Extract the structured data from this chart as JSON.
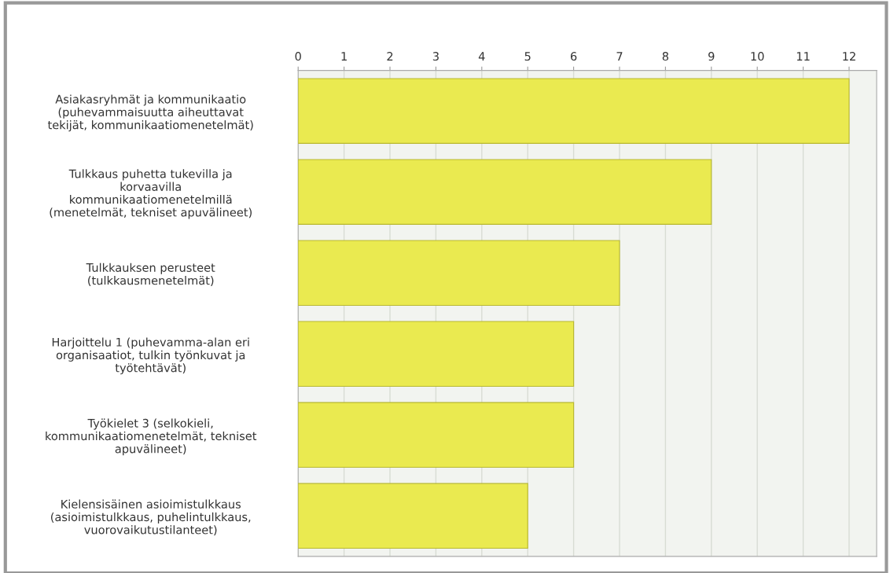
{
  "chart_data": {
    "type": "bar",
    "orientation": "horizontal",
    "categories": [
      "Asiakasryhmät ja kommunikaatio\n(puhevammaisuutta aiheuttavat\ntekijät, kommunikaatiomenetelmät)",
      "Tulkkaus puhetta tukevilla ja\nkorvaavilla\nkommunikaatiomenetelmillä\n(menetelmät, tekniset apuvälineet)",
      "Tulkkauksen perusteet\n(tulkkausmenetelmät)",
      "Harjoittelu 1 (puhevamma-alan eri\norganisaatiot, tulkin työnkuvat ja\ntyötehtävät)",
      "Työkielet 3 (selkokieli,\nkommunikaatiomenetelmät, tekniset\napuvälineet)",
      "Kielensisäinen asioimistulkkaus\n(asioimistulkkaus, puhelintulkkaus,\nvuorovaikutustilanteet)"
    ],
    "values": [
      12,
      9,
      7,
      6,
      6,
      5
    ],
    "color": "#eaea50",
    "xlim": [
      0,
      12.6
    ],
    "xticks": [
      0,
      1,
      2,
      3,
      4,
      5,
      6,
      7,
      8,
      9,
      10,
      11,
      12
    ],
    "grid": "x",
    "legend": false
  }
}
